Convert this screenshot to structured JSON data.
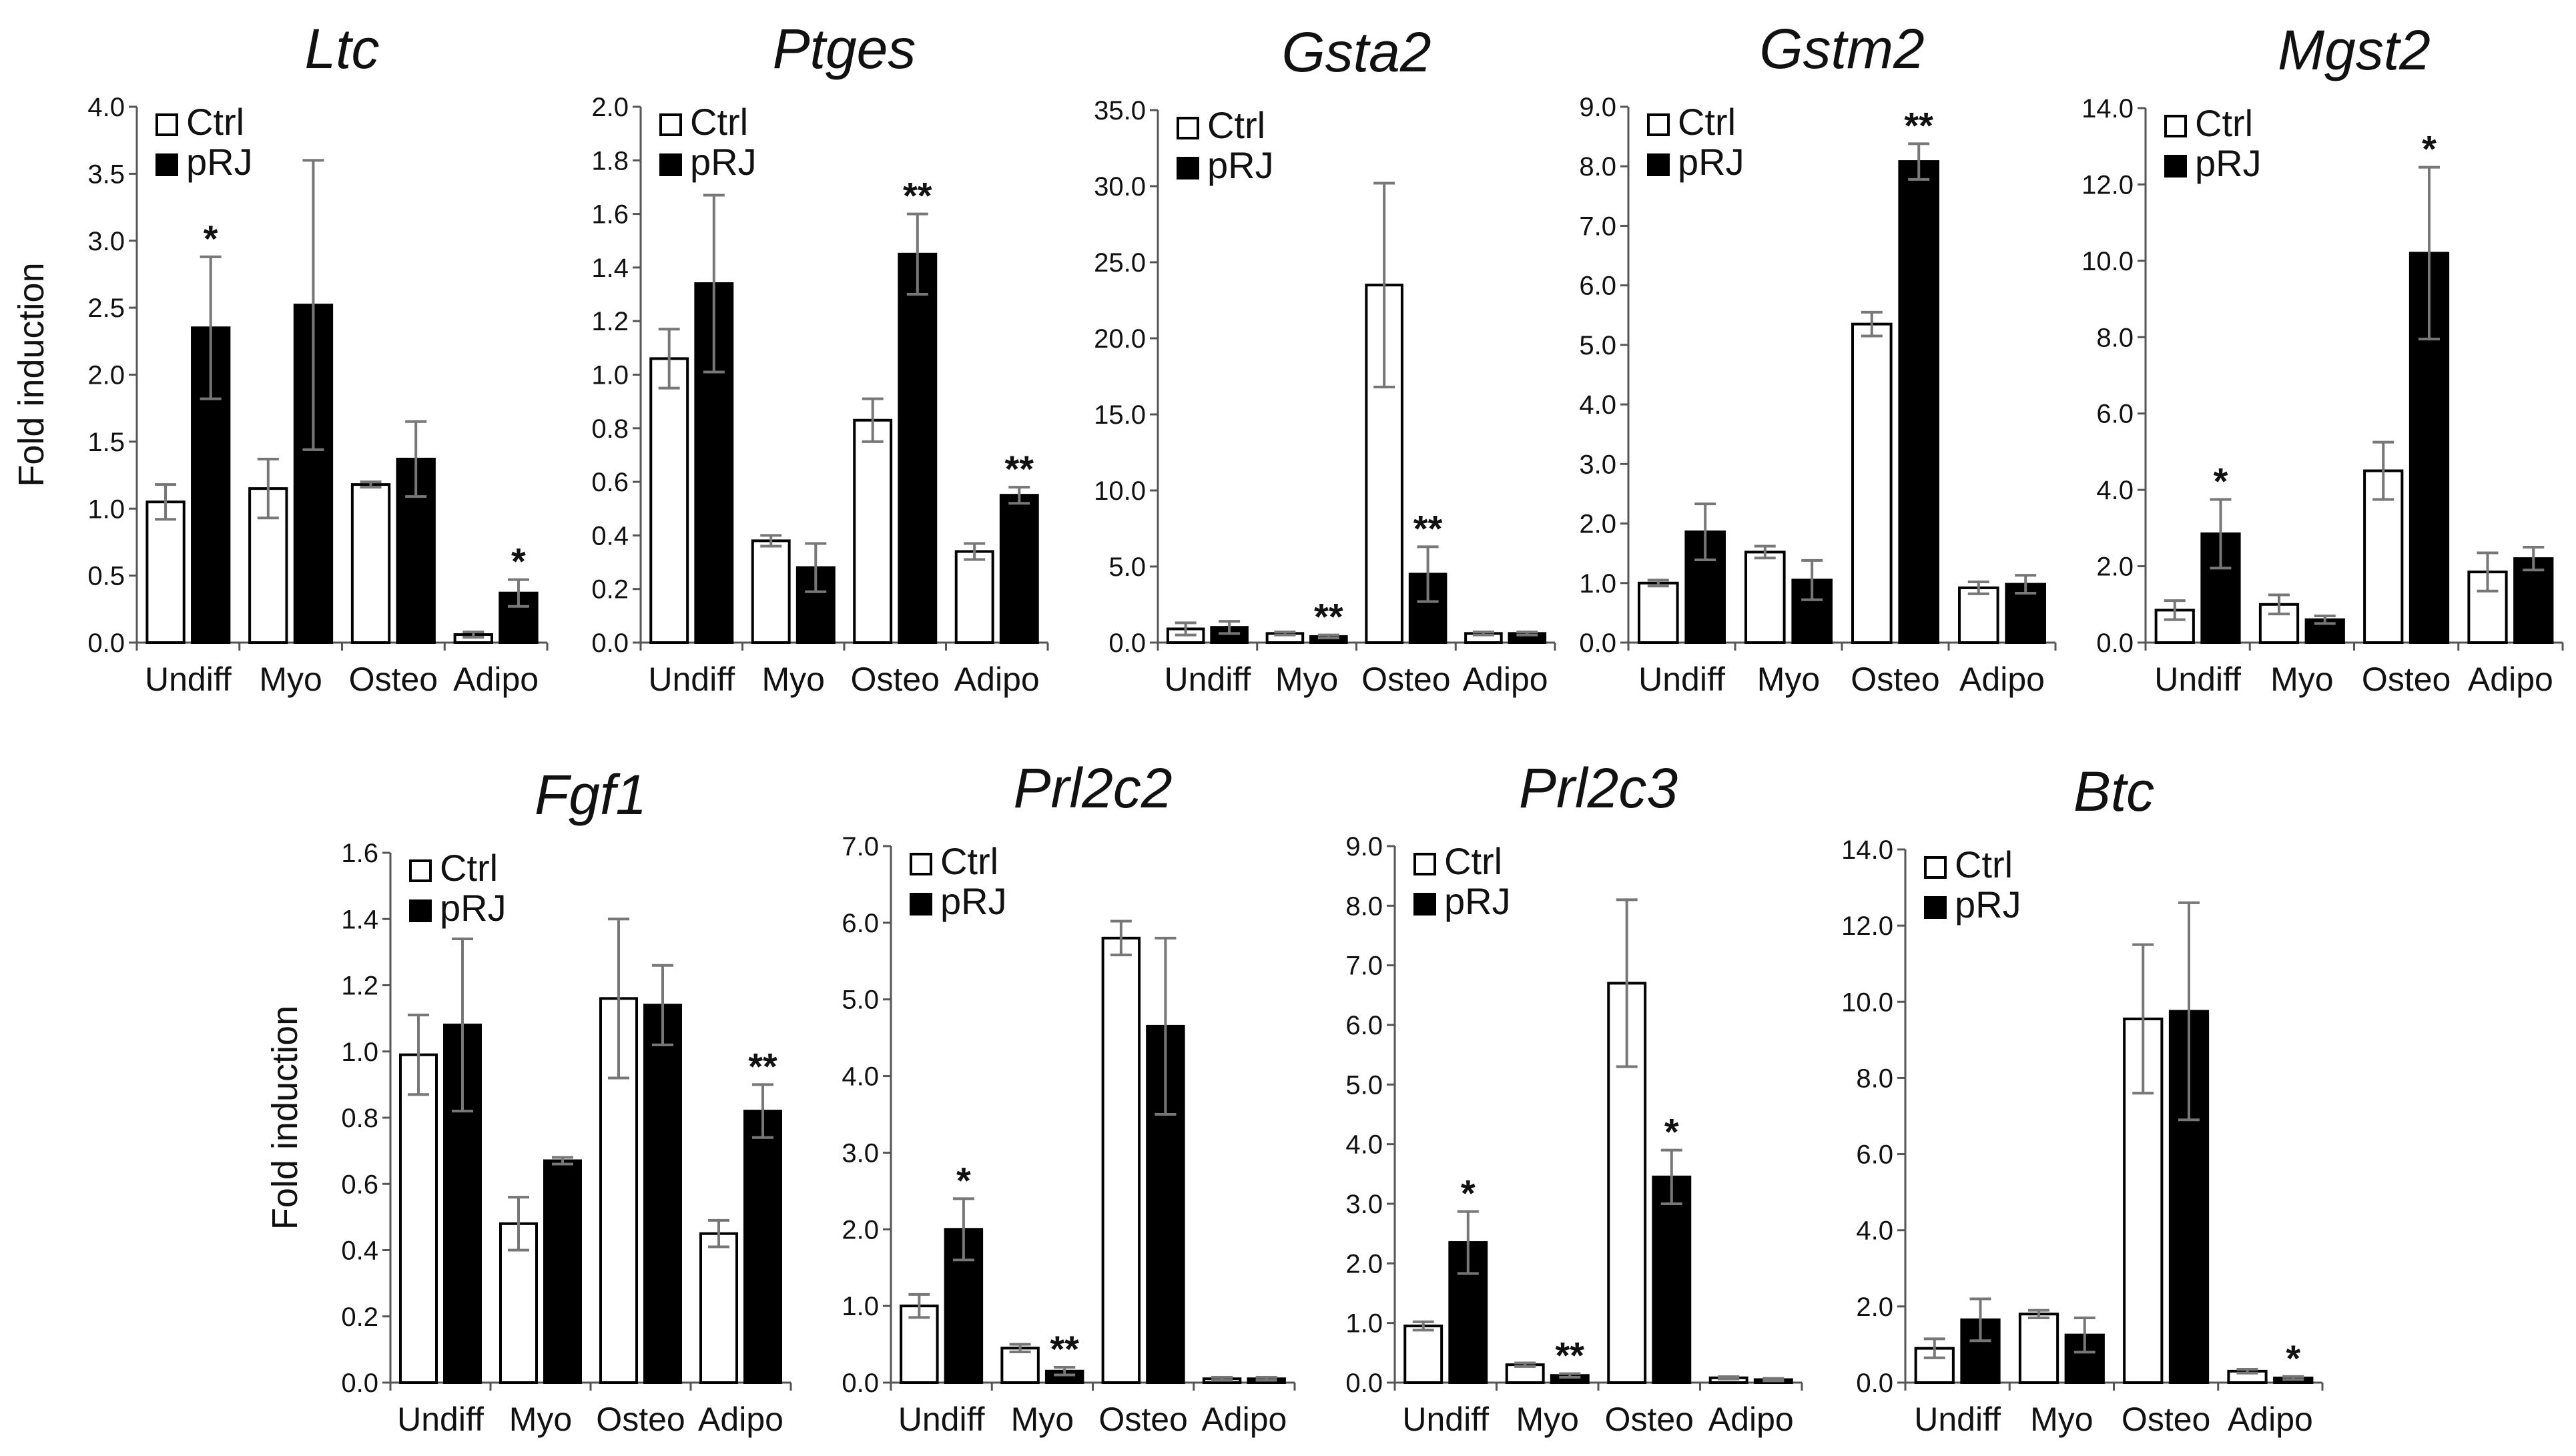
{
  "legend": {
    "ctrl": "Ctrl",
    "prj": "pRJ"
  },
  "colors": {
    "ctrl_fill": "#ffffff",
    "prj_fill": "#000000",
    "error_bar": "#777777",
    "axis": "#555555"
  },
  "y_axis_label": "Fold induction",
  "chart_data": [
    {
      "type": "bar",
      "title": "Ltc",
      "ylabel": "Fold induction",
      "categories": [
        "Undiff",
        "Myo",
        "Osteo",
        "Adipo"
      ],
      "ylim": [
        0,
        4.0
      ],
      "ytick_step": 0.5,
      "tick_decimals": 1,
      "series": [
        {
          "name": "Ctrl",
          "values": [
            1.05,
            1.15,
            1.18,
            0.06
          ],
          "errors": [
            0.13,
            0.22,
            0.02,
            0.02
          ]
        },
        {
          "name": "pRJ",
          "values": [
            2.35,
            2.52,
            1.37,
            0.37
          ],
          "errors": [
            0.53,
            1.08,
            0.28,
            0.1
          ]
        }
      ],
      "annotations": [
        {
          "series": "pRJ",
          "category": "Undiff",
          "text": "*"
        },
        {
          "series": "pRJ",
          "category": "Adipo",
          "text": "*"
        }
      ]
    },
    {
      "type": "bar",
      "title": "Ptges",
      "ylabel": "",
      "categories": [
        "Undiff",
        "Myo",
        "Osteo",
        "Adipo"
      ],
      "ylim": [
        0,
        2.0
      ],
      "ytick_step": 0.2,
      "tick_decimals": 1,
      "series": [
        {
          "name": "Ctrl",
          "values": [
            1.06,
            0.38,
            0.83,
            0.34
          ],
          "errors": [
            0.11,
            0.02,
            0.08,
            0.03
          ]
        },
        {
          "name": "pRJ",
          "values": [
            1.34,
            0.28,
            1.45,
            0.55
          ],
          "errors": [
            0.33,
            0.09,
            0.15,
            0.03
          ]
        }
      ],
      "annotations": [
        {
          "series": "pRJ",
          "category": "Osteo",
          "text": "**"
        },
        {
          "series": "pRJ",
          "category": "Adipo",
          "text": "**"
        }
      ]
    },
    {
      "type": "bar",
      "title": "Gsta2",
      "ylabel": "",
      "categories": [
        "Undiff",
        "Myo",
        "Osteo",
        "Adipo"
      ],
      "ylim": [
        0,
        35.0
      ],
      "ytick_step": 5,
      "tick_decimals": 1,
      "series": [
        {
          "name": "Ctrl",
          "values": [
            0.9,
            0.6,
            23.5,
            0.6
          ],
          "errors": [
            0.4,
            0.1,
            6.7,
            0.1
          ]
        },
        {
          "name": "pRJ",
          "values": [
            1.0,
            0.4,
            4.5,
            0.6
          ],
          "errors": [
            0.4,
            0.1,
            1.8,
            0.1
          ]
        }
      ],
      "annotations": [
        {
          "series": "pRJ",
          "category": "Myo",
          "text": "**"
        },
        {
          "series": "pRJ",
          "category": "Osteo",
          "text": "**"
        }
      ]
    },
    {
      "type": "bar",
      "title": "Gstm2",
      "ylabel": "",
      "categories": [
        "Undiff",
        "Myo",
        "Osteo",
        "Adipo"
      ],
      "ylim": [
        0,
        9.0
      ],
      "ytick_step": 1,
      "tick_decimals": 1,
      "series": [
        {
          "name": "Ctrl",
          "values": [
            1.0,
            1.52,
            5.35,
            0.92
          ],
          "errors": [
            0.05,
            0.1,
            0.2,
            0.1
          ]
        },
        {
          "name": "pRJ",
          "values": [
            1.86,
            1.05,
            8.08,
            0.98
          ],
          "errors": [
            0.47,
            0.33,
            0.3,
            0.15
          ]
        }
      ],
      "annotations": [
        {
          "series": "pRJ",
          "category": "Osteo",
          "text": "**"
        }
      ]
    },
    {
      "type": "bar",
      "title": "Mgst2",
      "ylabel": "",
      "categories": [
        "Undiff",
        "Myo",
        "Osteo",
        "Adipo"
      ],
      "ylim": [
        0,
        14.0
      ],
      "ytick_step": 2,
      "tick_decimals": 1,
      "series": [
        {
          "name": "Ctrl",
          "values": [
            0.85,
            1.0,
            4.5,
            1.85
          ],
          "errors": [
            0.25,
            0.25,
            0.75,
            0.5
          ]
        },
        {
          "name": "pRJ",
          "values": [
            2.85,
            0.6,
            10.2,
            2.2
          ],
          "errors": [
            0.9,
            0.1,
            2.25,
            0.3
          ]
        }
      ],
      "annotations": [
        {
          "series": "pRJ",
          "category": "Undiff",
          "text": "*"
        },
        {
          "series": "pRJ",
          "category": "Osteo",
          "text": "*"
        }
      ]
    },
    {
      "type": "bar",
      "title": "Fgf1",
      "ylabel": "Fold induction",
      "categories": [
        "Undiff",
        "Myo",
        "Osteo",
        "Adipo"
      ],
      "ylim": [
        0,
        1.6
      ],
      "ytick_step": 0.2,
      "tick_decimals": 1,
      "series": [
        {
          "name": "Ctrl",
          "values": [
            0.99,
            0.48,
            1.16,
            0.45
          ],
          "errors": [
            0.12,
            0.08,
            0.24,
            0.04
          ]
        },
        {
          "name": "pRJ",
          "values": [
            1.08,
            0.67,
            1.14,
            0.82
          ],
          "errors": [
            0.26,
            0.01,
            0.12,
            0.08
          ]
        }
      ],
      "annotations": [
        {
          "series": "pRJ",
          "category": "Adipo",
          "text": "**"
        }
      ]
    },
    {
      "type": "bar",
      "title": "Prl2c2",
      "ylabel": "",
      "categories": [
        "Undiff",
        "Myo",
        "Osteo",
        "Adipo"
      ],
      "ylim": [
        0,
        7.0
      ],
      "ytick_step": 1,
      "tick_decimals": 1,
      "series": [
        {
          "name": "Ctrl",
          "values": [
            1.0,
            0.45,
            5.8,
            0.05
          ],
          "errors": [
            0.15,
            0.05,
            0.22,
            0.02
          ]
        },
        {
          "name": "pRJ",
          "values": [
            2.0,
            0.15,
            4.65,
            0.05
          ],
          "errors": [
            0.4,
            0.05,
            1.15,
            0.02
          ]
        }
      ],
      "annotations": [
        {
          "series": "pRJ",
          "category": "Undiff",
          "text": "*"
        },
        {
          "series": "pRJ",
          "category": "Myo",
          "text": "**"
        }
      ]
    },
    {
      "type": "bar",
      "title": "Prl2c3",
      "ylabel": "",
      "categories": [
        "Undiff",
        "Myo",
        "Osteo",
        "Adipo"
      ],
      "ylim": [
        0,
        9.0
      ],
      "ytick_step": 1,
      "tick_decimals": 1,
      "series": [
        {
          "name": "Ctrl",
          "values": [
            0.95,
            0.3,
            6.7,
            0.08
          ],
          "errors": [
            0.07,
            0.03,
            1.4,
            0.02
          ]
        },
        {
          "name": "pRJ",
          "values": [
            2.35,
            0.12,
            3.45,
            0.05
          ],
          "errors": [
            0.52,
            0.03,
            0.45,
            0.02
          ]
        }
      ],
      "annotations": [
        {
          "series": "pRJ",
          "category": "Undiff",
          "text": "*"
        },
        {
          "series": "pRJ",
          "category": "Myo",
          "text": "**"
        },
        {
          "series": "pRJ",
          "category": "Osteo",
          "text": "*"
        }
      ]
    },
    {
      "type": "bar",
      "title": "Btc",
      "ylabel": "",
      "categories": [
        "Undiff",
        "Myo",
        "Osteo",
        "Adipo"
      ],
      "ylim": [
        0,
        14.0
      ],
      "ytick_step": 2,
      "tick_decimals": 1,
      "series": [
        {
          "name": "Ctrl",
          "values": [
            0.9,
            1.8,
            9.55,
            0.3
          ],
          "errors": [
            0.25,
            0.1,
            1.95,
            0.05
          ]
        },
        {
          "name": "pRJ",
          "values": [
            1.65,
            1.25,
            9.75,
            0.12
          ],
          "errors": [
            0.55,
            0.45,
            2.85,
            0.04
          ]
        }
      ],
      "annotations": [
        {
          "series": "pRJ",
          "category": "Adipo",
          "text": "*"
        }
      ]
    }
  ]
}
